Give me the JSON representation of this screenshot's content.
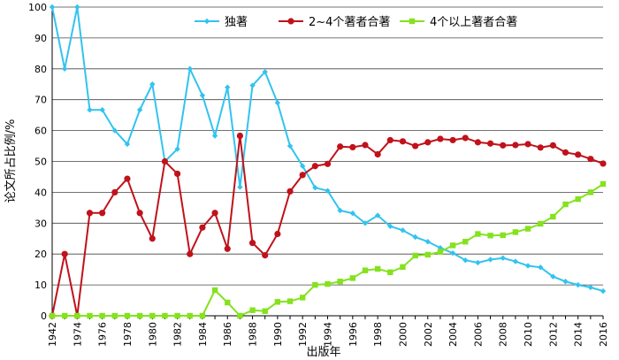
{
  "chart_data": {
    "type": "line",
    "title": "",
    "xlabel": "出版年",
    "ylabel": "论文所占比例/%",
    "ylim": [
      0,
      100
    ],
    "yticks": [
      0,
      10,
      20,
      30,
      40,
      50,
      60,
      70,
      80,
      90,
      100
    ],
    "categories": [
      "1942",
      "1973",
      "1974",
      "1975",
      "1976",
      "1977",
      "1978",
      "1979",
      "1980",
      "1981",
      "1982",
      "1983",
      "1984",
      "1985",
      "1986",
      "1987",
      "1988",
      "1989",
      "1990",
      "1991",
      "1992",
      "1993",
      "1994",
      "1995",
      "1996",
      "1997",
      "1998",
      "1999",
      "2000",
      "2001",
      "2002",
      "2003",
      "2004",
      "2005",
      "2006",
      "2007",
      "2008",
      "2009",
      "2010",
      "2011",
      "2012",
      "2013",
      "2014",
      "2015",
      "2016"
    ],
    "xtick_labels": [
      "1942",
      "1974",
      "1976",
      "1978",
      "1980",
      "1982",
      "1984",
      "1986",
      "1988",
      "1990",
      "1992",
      "1994",
      "1996",
      "1998",
      "2000",
      "2002",
      "2004",
      "2006",
      "2008",
      "2010",
      "2012",
      "2014",
      "2016"
    ],
    "grid": true,
    "legend_position": "top",
    "series": [
      {
        "name": "独著",
        "color": "#33c3ef",
        "marker": "diamond",
        "values": [
          100,
          80,
          100,
          66.7,
          66.7,
          60,
          55.6,
          66.7,
          75,
          50,
          54,
          80,
          71.4,
          58.3,
          74,
          41.7,
          74.6,
          79,
          69,
          55,
          48.5,
          41.5,
          40.5,
          34.1,
          33.2,
          30,
          32.5,
          29,
          27.7,
          25.5,
          24,
          22,
          20.3,
          18,
          17.2,
          18.2,
          18.7,
          17.6,
          16.2,
          15.7,
          12.7,
          11.1,
          10,
          9.2,
          8
        ]
      },
      {
        "name": "2~4个著者合著",
        "color": "#c0121b",
        "marker": "circle",
        "values": [
          0,
          20,
          0,
          33.3,
          33.3,
          40,
          44.4,
          33.3,
          25,
          50,
          46,
          20,
          28.6,
          33.3,
          21.7,
          58.3,
          23.6,
          19.6,
          26.5,
          40.3,
          45.6,
          48.5,
          49.2,
          54.8,
          54.6,
          55.3,
          52.3,
          56.9,
          56.5,
          55,
          56.2,
          57.3,
          56.9,
          57.6,
          56.2,
          55.8,
          55.2,
          55.3,
          55.6,
          54.5,
          55.2,
          52.9,
          52.2,
          50.8,
          49.3
        ]
      },
      {
        "name": "4个以上著者合著",
        "color": "#84e21e",
        "marker": "square",
        "values": [
          0,
          0,
          0,
          0,
          0,
          0,
          0,
          0,
          0,
          0,
          0,
          0,
          0,
          8.3,
          4.3,
          0,
          1.8,
          1.5,
          4.5,
          4.7,
          5.9,
          10,
          10.3,
          11.1,
          12.2,
          14.7,
          15.2,
          14.1,
          15.8,
          19.5,
          19.8,
          20.7,
          22.8,
          24,
          26.5,
          26,
          26.1,
          27.1,
          28.2,
          29.8,
          32.1,
          36.1,
          37.8,
          40,
          42.7
        ]
      }
    ]
  }
}
